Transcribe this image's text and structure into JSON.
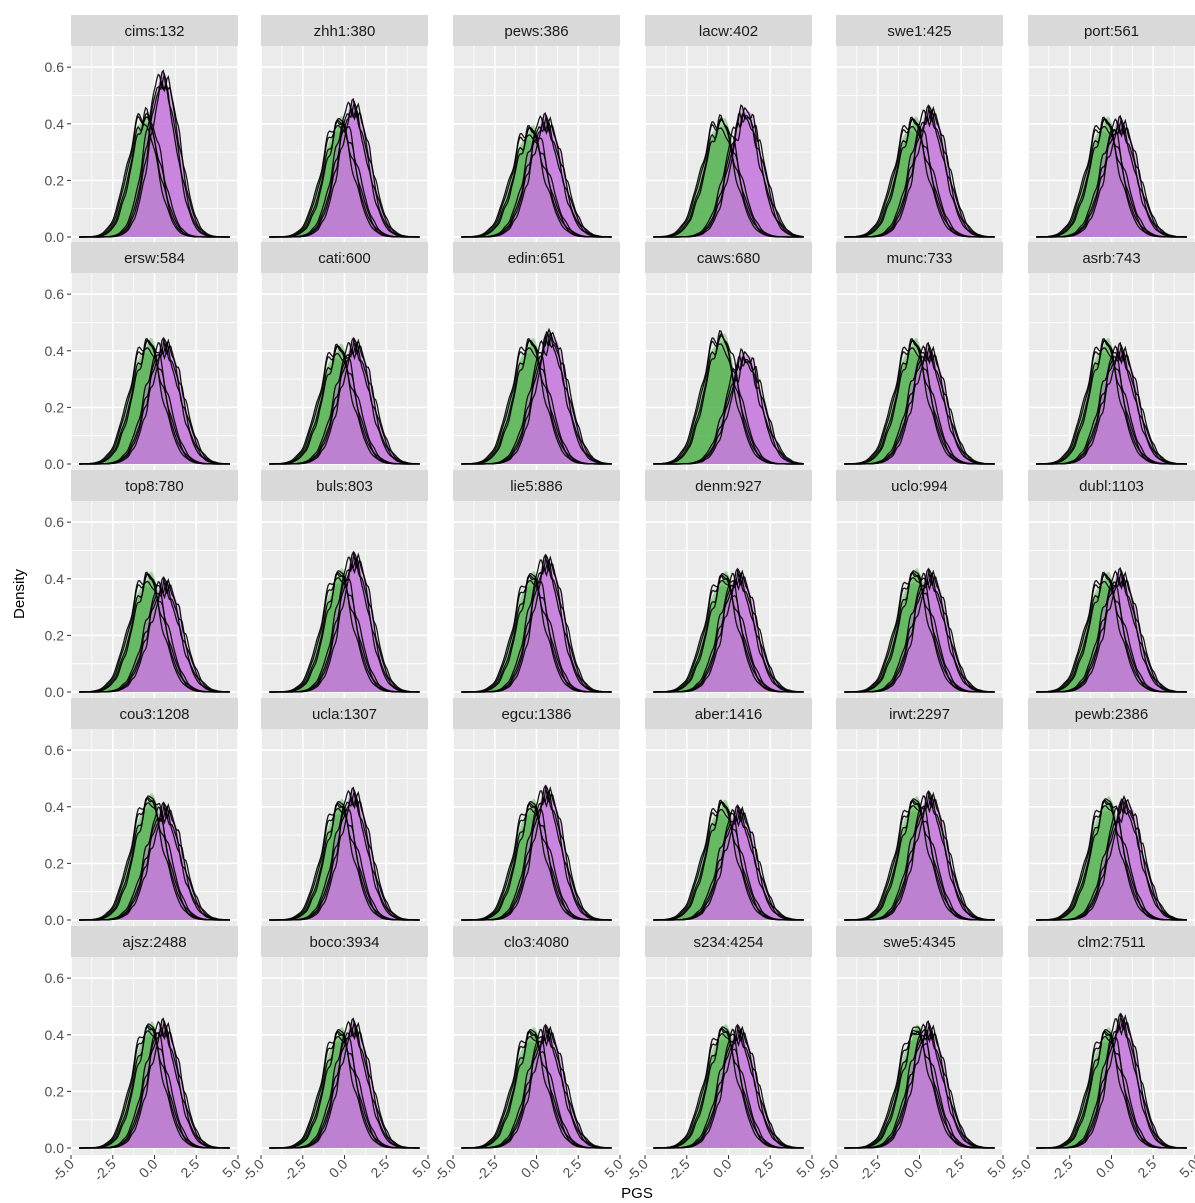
{
  "chart_data": {
    "type": "area",
    "xlabel": "PGS",
    "ylabel": "Density",
    "xlim": [
      -5.0,
      5.0
    ],
    "ylim": [
      0.0,
      0.6
    ],
    "x_ticks": [
      "-5.0",
      "-2.5",
      "0.0",
      "2.5",
      "5.0"
    ],
    "y_ticks": [
      "0.0",
      "0.2",
      "0.4",
      "0.6"
    ],
    "grid": true,
    "legend": "none",
    "colors": {
      "green_fill": "#4daf4a",
      "purple_fill": "#c77cdd",
      "outline": "#000000",
      "panel_bg": "#ebebeb",
      "strip_bg": "#d9d9d9",
      "grid": "#ffffff"
    },
    "panels": [
      {
        "label": "cims:132",
        "green_peak": 0.42,
        "green_mean": -0.6,
        "purple_peak": 0.56,
        "purple_mean": 0.5,
        "sd": 0.9
      },
      {
        "label": "zhh1:380",
        "green_peak": 0.4,
        "green_mean": -0.3,
        "purple_peak": 0.46,
        "purple_mean": 0.5,
        "sd": 0.95
      },
      {
        "label": "pews:386",
        "green_peak": 0.37,
        "green_mean": -0.4,
        "purple_peak": 0.41,
        "purple_mean": 0.5,
        "sd": 1.0
      },
      {
        "label": "lacw:402",
        "green_peak": 0.4,
        "green_mean": -0.5,
        "purple_peak": 0.44,
        "purple_mean": 1.0,
        "sd": 1.0
      },
      {
        "label": "swe1:425",
        "green_peak": 0.4,
        "green_mean": -0.4,
        "purple_peak": 0.44,
        "purple_mean": 0.6,
        "sd": 1.0
      },
      {
        "label": "port:561",
        "green_peak": 0.4,
        "green_mean": -0.4,
        "purple_peak": 0.4,
        "purple_mean": 0.5,
        "sd": 1.0
      },
      {
        "label": "ersw:584",
        "green_peak": 0.42,
        "green_mean": -0.4,
        "purple_peak": 0.42,
        "purple_mean": 0.6,
        "sd": 1.0
      },
      {
        "label": "cati:600",
        "green_peak": 0.4,
        "green_mean": -0.4,
        "purple_peak": 0.42,
        "purple_mean": 0.6,
        "sd": 1.0
      },
      {
        "label": "edin:651",
        "green_peak": 0.42,
        "green_mean": -0.4,
        "purple_peak": 0.45,
        "purple_mean": 0.8,
        "sd": 1.0
      },
      {
        "label": "caws:680",
        "green_peak": 0.44,
        "green_mean": -0.5,
        "purple_peak": 0.38,
        "purple_mean": 1.0,
        "sd": 1.0
      },
      {
        "label": "munc:733",
        "green_peak": 0.42,
        "green_mean": -0.4,
        "purple_peak": 0.4,
        "purple_mean": 0.5,
        "sd": 1.0
      },
      {
        "label": "asrb:743",
        "green_peak": 0.42,
        "green_mean": -0.4,
        "purple_peak": 0.4,
        "purple_mean": 0.5,
        "sd": 1.0
      },
      {
        "label": "top8:780",
        "green_peak": 0.4,
        "green_mean": -0.4,
        "purple_peak": 0.38,
        "purple_mean": 0.6,
        "sd": 1.0
      },
      {
        "label": "buls:803",
        "green_peak": 0.41,
        "green_mean": -0.3,
        "purple_peak": 0.47,
        "purple_mean": 0.6,
        "sd": 0.95
      },
      {
        "label": "lie5:886",
        "green_peak": 0.4,
        "green_mean": -0.3,
        "purple_peak": 0.46,
        "purple_mean": 0.6,
        "sd": 0.95
      },
      {
        "label": "denm:927",
        "green_peak": 0.4,
        "green_mean": -0.3,
        "purple_peak": 0.41,
        "purple_mean": 0.6,
        "sd": 1.0
      },
      {
        "label": "uclo:994",
        "green_peak": 0.41,
        "green_mean": -0.3,
        "purple_peak": 0.41,
        "purple_mean": 0.6,
        "sd": 1.0
      },
      {
        "label": "dubl:1103",
        "green_peak": 0.4,
        "green_mean": -0.4,
        "purple_peak": 0.41,
        "purple_mean": 0.5,
        "sd": 1.0
      },
      {
        "label": "cou3:1208",
        "green_peak": 0.42,
        "green_mean": -0.3,
        "purple_peak": 0.39,
        "purple_mean": 0.6,
        "sd": 1.0
      },
      {
        "label": "ucla:1307",
        "green_peak": 0.4,
        "green_mean": -0.3,
        "purple_peak": 0.44,
        "purple_mean": 0.5,
        "sd": 0.95
      },
      {
        "label": "egcu:1386",
        "green_peak": 0.4,
        "green_mean": -0.3,
        "purple_peak": 0.45,
        "purple_mean": 0.6,
        "sd": 0.95
      },
      {
        "label": "aber:1416",
        "green_peak": 0.4,
        "green_mean": -0.4,
        "purple_peak": 0.38,
        "purple_mean": 0.6,
        "sd": 1.0
      },
      {
        "label": "irwt:2297",
        "green_peak": 0.41,
        "green_mean": -0.3,
        "purple_peak": 0.43,
        "purple_mean": 0.6,
        "sd": 1.0
      },
      {
        "label": "pewb:2386",
        "green_peak": 0.41,
        "green_mean": -0.3,
        "purple_peak": 0.41,
        "purple_mean": 0.8,
        "sd": 1.0
      },
      {
        "label": "ajsz:2488",
        "green_peak": 0.42,
        "green_mean": -0.3,
        "purple_peak": 0.43,
        "purple_mean": 0.5,
        "sd": 0.95
      },
      {
        "label": "boco:3934",
        "green_peak": 0.4,
        "green_mean": -0.3,
        "purple_peak": 0.43,
        "purple_mean": 0.5,
        "sd": 0.95
      },
      {
        "label": "clo3:4080",
        "green_peak": 0.4,
        "green_mean": -0.3,
        "purple_peak": 0.41,
        "purple_mean": 0.6,
        "sd": 1.0
      },
      {
        "label": "s234:4254",
        "green_peak": 0.41,
        "green_mean": -0.3,
        "purple_peak": 0.41,
        "purple_mean": 0.6,
        "sd": 1.0
      },
      {
        "label": "swe5:4345",
        "green_peak": 0.41,
        "green_mean": -0.2,
        "purple_peak": 0.42,
        "purple_mean": 0.5,
        "sd": 1.0
      },
      {
        "label": "clm2:7511",
        "green_peak": 0.4,
        "green_mean": -0.3,
        "purple_peak": 0.45,
        "purple_mean": 0.6,
        "sd": 0.95
      }
    ]
  }
}
